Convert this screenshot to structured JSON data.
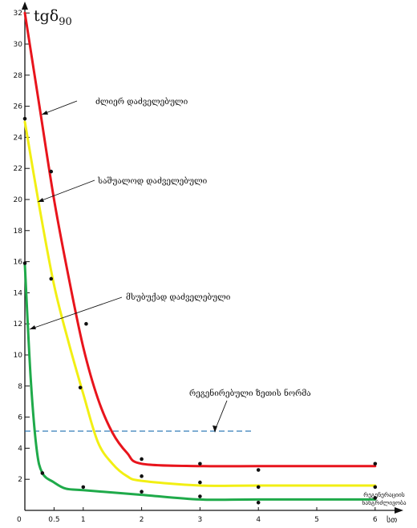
{
  "chart_data": {
    "type": "line",
    "ylabel_base": "tgδ",
    "ylabel_sub": "90",
    "xlabel": "სთ",
    "xlim": [
      0,
      6.5
    ],
    "ylim": [
      0,
      33
    ],
    "xticks": [
      0.5,
      1,
      2,
      3,
      4,
      5,
      6
    ],
    "xtick_labels": [
      "0.5",
      "1",
      "2",
      "3",
      "4",
      "5",
      "6"
    ],
    "xorigin_label": "0",
    "yticks": [
      2,
      4,
      6,
      8,
      10,
      12,
      14,
      16,
      18,
      20,
      22,
      24,
      26,
      28,
      30,
      32
    ],
    "grid": false,
    "series": [
      {
        "name": "ძლიერ დაძველებული",
        "color": "#e8141c",
        "x": [
          0,
          0.25,
          0.5,
          0.75,
          1.0,
          1.25,
          1.5,
          1.75,
          2.0,
          3.0,
          4.0,
          6.0
        ],
        "y": [
          32.0,
          26.0,
          20.0,
          15.0,
          10.5,
          7.2,
          5.0,
          3.7,
          3.0,
          2.85,
          2.85,
          2.85
        ],
        "points_x": [
          0.45,
          1.05,
          2.0,
          3.0,
          4.0,
          6.0
        ],
        "points_y": [
          21.8,
          12.0,
          3.3,
          3.0,
          2.6,
          3.0
        ]
      },
      {
        "name": "საშუალოდ დაძველებული",
        "color": "#f2ef13",
        "x": [
          0,
          0.25,
          0.5,
          0.75,
          1.0,
          1.25,
          1.5,
          1.75,
          2.0,
          3.0,
          4.0,
          6.0
        ],
        "y": [
          25.0,
          19.5,
          14.5,
          10.8,
          7.5,
          4.4,
          3.0,
          2.2,
          1.9,
          1.6,
          1.6,
          1.6
        ],
        "points_x": [
          0,
          0.45,
          0.95,
          2.0,
          3.0,
          4.0,
          6.0
        ],
        "points_y": [
          25.2,
          14.9,
          7.9,
          2.2,
          1.8,
          1.5,
          1.5
        ]
      },
      {
        "name": "მსუბუქად დაძველებული",
        "color": "#1faa4a",
        "x": [
          0,
          0.1,
          0.2,
          0.3,
          0.5,
          0.7,
          1.0,
          2.0,
          3.0,
          4.0,
          6.0
        ],
        "y": [
          15.8,
          8.5,
          4.0,
          2.4,
          1.8,
          1.4,
          1.3,
          1.0,
          0.7,
          0.7,
          0.7
        ],
        "points_x": [
          0,
          0.3,
          1.0,
          2.0,
          3.0,
          4.0,
          6.0
        ],
        "points_y": [
          15.9,
          2.4,
          1.5,
          1.2,
          0.9,
          0.5,
          0.8
        ]
      }
    ],
    "reference": {
      "label": "რეგენირებული ზეთის ნორმა",
      "value": 5.1,
      "x_from": 0,
      "x_to": 3.9,
      "color": "#1f6fb0"
    },
    "regen_label_line1": "რეგენერაციის",
    "regen_label_line2": "ხანგრძლივობა"
  }
}
